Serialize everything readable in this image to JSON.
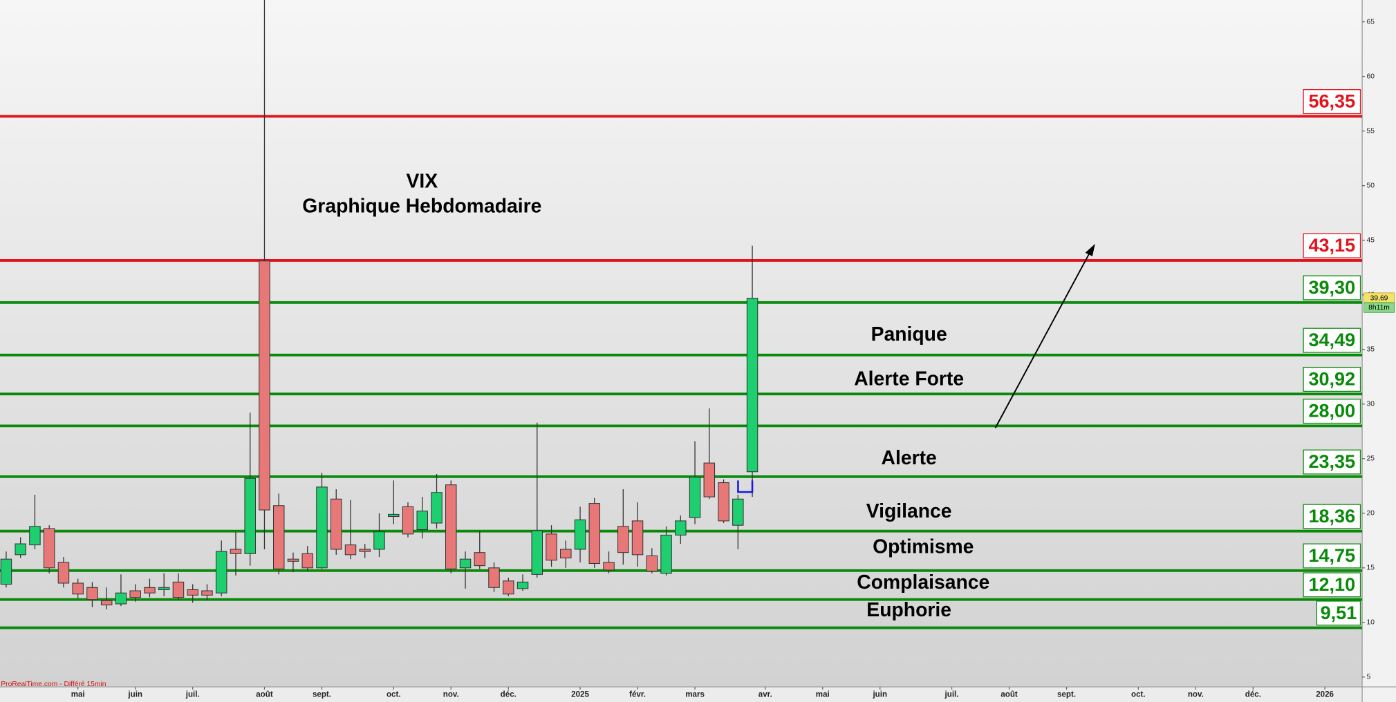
{
  "chart_data": {
    "type": "candlestick",
    "title": "VIX",
    "subtitle": "Graphique Hebdomadaire",
    "source": "ProRealTime.com - Différé 15min",
    "up_color": "#1ecf70",
    "down_color": "#e87878",
    "x": [
      0,
      1,
      2,
      3,
      4,
      5,
      6,
      7,
      8,
      9,
      10,
      11,
      12,
      13,
      14,
      15,
      16,
      17,
      18,
      19,
      20,
      21,
      22,
      23,
      24,
      25,
      26,
      27,
      28,
      29,
      30,
      31,
      32,
      33,
      34,
      35,
      36,
      37,
      38,
      39,
      40,
      41,
      42,
      43,
      44,
      45,
      46,
      47,
      48,
      49,
      50,
      51,
      52
    ],
    "open": [
      13.5,
      16.2,
      17.1,
      18.6,
      15.5,
      13.6,
      13.2,
      12.0,
      11.7,
      12.9,
      13.2,
      13.0,
      13.7,
      13.0,
      12.9,
      12.7,
      16.7,
      16.3,
      43.1,
      20.7,
      15.8,
      16.3,
      15.0,
      21.3,
      17.1,
      16.7,
      16.7,
      19.7,
      20.6,
      18.5,
      19.1,
      22.6,
      15.0,
      16.4,
      15.0,
      13.8,
      13.1,
      14.4,
      18.1,
      16.7,
      16.7,
      20.9,
      15.5,
      18.8,
      19.3,
      16.1,
      14.5,
      18.0,
      19.6,
      24.6,
      22.8,
      18.9,
      23.8
    ],
    "high": [
      16.5,
      17.8,
      21.7,
      18.9,
      16.0,
      14.0,
      13.7,
      13.2,
      14.4,
      13.5,
      14.0,
      14.5,
      14.5,
      13.5,
      13.5,
      17.5,
      18.3,
      29.2,
      67.0,
      21.8,
      16.4,
      17.0,
      23.7,
      22.2,
      21.2,
      17.2,
      20.0,
      23.0,
      21.0,
      21.5,
      23.6,
      23.0,
      16.5,
      18.4,
      15.5,
      14.1,
      14.4,
      28.3,
      18.9,
      17.5,
      20.6,
      21.4,
      16.5,
      22.2,
      21.0,
      16.8,
      18.8,
      19.8,
      26.6,
      29.6,
      23.1,
      21.7,
      44.5
    ],
    "low": [
      13.2,
      15.9,
      16.7,
      14.5,
      13.2,
      12.2,
      11.4,
      11.2,
      11.5,
      11.9,
      12.3,
      12.4,
      12.0,
      11.8,
      12.0,
      12.4,
      14.3,
      15.2,
      16.7,
      14.4,
      14.6,
      14.7,
      14.9,
      16.2,
      15.8,
      15.9,
      16.0,
      19.0,
      17.8,
      17.7,
      18.6,
      14.5,
      13.1,
      14.9,
      12.8,
      12.4,
      12.9,
      14.1,
      15.1,
      15.0,
      15.5,
      15.0,
      14.5,
      15.3,
      15.1,
      14.5,
      14.3,
      17.2,
      19.0,
      21.3,
      19.1,
      16.7,
      21.5
    ],
    "close": [
      15.8,
      17.2,
      18.8,
      15.0,
      13.6,
      12.6,
      12.1,
      11.6,
      12.7,
      12.3,
      12.7,
      13.2,
      12.3,
      12.5,
      12.5,
      16.5,
      16.3,
      23.2,
      20.3,
      14.9,
      15.6,
      15.0,
      22.4,
      16.7,
      16.2,
      16.5,
      18.3,
      19.9,
      18.1,
      20.2,
      21.9,
      14.9,
      15.8,
      15.2,
      13.2,
      12.6,
      13.7,
      18.4,
      15.7,
      15.9,
      19.4,
      15.4,
      14.8,
      16.4,
      16.2,
      14.7,
      18.0,
      19.3,
      23.3,
      21.5,
      19.3,
      21.3,
      39.69
    ],
    "xlim": [
      -0.43,
      94.5
    ],
    "xticks": [
      {
        "value": 5,
        "label": "mai"
      },
      {
        "value": 9,
        "label": "juin"
      },
      {
        "value": 13,
        "label": "juil."
      },
      {
        "value": 18,
        "label": "août"
      },
      {
        "value": 22,
        "label": "sept."
      },
      {
        "value": 27,
        "label": "oct."
      },
      {
        "value": 31,
        "label": "nov."
      },
      {
        "value": 35,
        "label": "déc."
      },
      {
        "value": 40,
        "label": "2025"
      },
      {
        "value": 44,
        "label": "févr."
      },
      {
        "value": 48,
        "label": "mars"
      },
      {
        "value": 52.9,
        "label": "avr."
      },
      {
        "value": 56.9,
        "label": "mai"
      },
      {
        "value": 60.9,
        "label": "juin"
      },
      {
        "value": 65.9,
        "label": "juil."
      },
      {
        "value": 69.9,
        "label": "août"
      },
      {
        "value": 73.9,
        "label": "sept."
      },
      {
        "value": 78.9,
        "label": "oct."
      },
      {
        "value": 82.9,
        "label": "nov."
      },
      {
        "value": 86.9,
        "label": "déc."
      },
      {
        "value": 91.9,
        "label": "2026"
      }
    ],
    "ylim": [
      4.1,
      67
    ],
    "yticks": [
      5,
      10,
      15,
      20,
      25,
      30,
      35,
      40,
      45,
      50,
      55,
      60,
      65
    ],
    "levels": [
      {
        "value": 56.35,
        "label": "56,35",
        "color": "#e0141e"
      },
      {
        "value": 43.15,
        "label": "43,15",
        "color": "#e0141e"
      },
      {
        "value": 39.3,
        "label": "39,30",
        "color": "#0a8a0a"
      },
      {
        "value": 34.49,
        "label": "34,49",
        "color": "#0a8a0a"
      },
      {
        "value": 30.92,
        "label": "30,92",
        "color": "#0a8a0a"
      },
      {
        "value": 28,
        "label": "28,00",
        "color": "#0a8a0a"
      },
      {
        "value": 23.35,
        "label": "23,35",
        "color": "#0a8a0a"
      },
      {
        "value": 18.36,
        "label": "18,36",
        "color": "#0a8a0a"
      },
      {
        "value": 14.75,
        "label": "14,75",
        "color": "#0a8a0a"
      },
      {
        "value": 12.1,
        "label": "12,10",
        "color": "#0a8a0a"
      },
      {
        "value": 9.51,
        "label": "9,51",
        "color": "#0a8a0a"
      }
    ],
    "zones": [
      "Panique",
      "Alerte Forte",
      "Alerte",
      "Vigilance",
      "Optimisme",
      "Complaisance",
      "Euphorie"
    ],
    "last_price": {
      "value": 39.69,
      "label": "39,69"
    },
    "timer": "8h11m"
  }
}
